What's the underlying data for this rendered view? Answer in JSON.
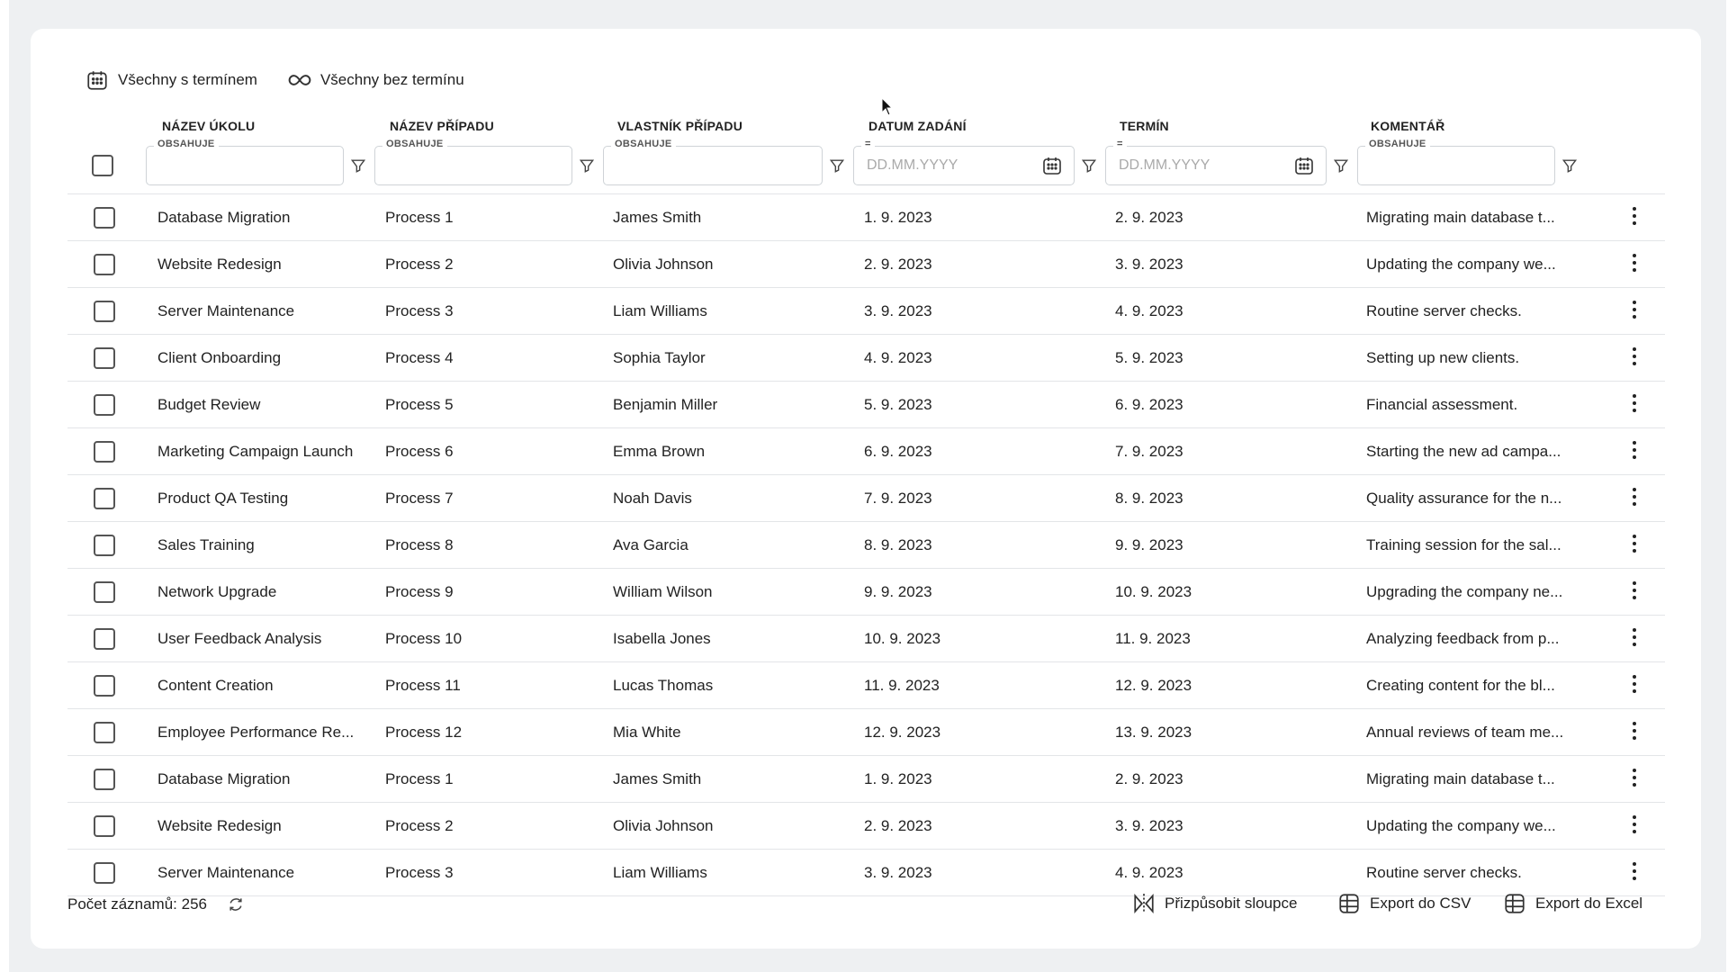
{
  "toolbar": {
    "with_deadline": "Všechny s termínem",
    "without_deadline": "Všechny bez termínu"
  },
  "columns": [
    {
      "label": "NÁZEV ÚKOLU",
      "filter_label": "OBSAHUJE",
      "placeholder": ""
    },
    {
      "label": "NÁZEV PŘÍPADU",
      "filter_label": "OBSAHUJE",
      "placeholder": ""
    },
    {
      "label": "VLASTNÍK PŘÍPADU",
      "filter_label": "OBSAHUJE",
      "placeholder": ""
    },
    {
      "label": "DATUM ZADÁNÍ",
      "filter_label": "=",
      "placeholder": "DD.MM.YYYY"
    },
    {
      "label": "TERMÍN",
      "filter_label": "=",
      "placeholder": "DD.MM.YYYY"
    },
    {
      "label": "KOMENTÁŘ",
      "filter_label": "OBSAHUJE",
      "placeholder": ""
    }
  ],
  "rows": [
    {
      "task": "Database Migration",
      "case": "Process 1",
      "owner": "James Smith",
      "assigned": "1. 9. 2023",
      "deadline": "2. 9. 2023",
      "comment": "Migrating main database t..."
    },
    {
      "task": "Website Redesign",
      "case": "Process 2",
      "owner": "Olivia Johnson",
      "assigned": "2. 9. 2023",
      "deadline": "3. 9. 2023",
      "comment": "Updating the company we..."
    },
    {
      "task": "Server Maintenance",
      "case": "Process 3",
      "owner": "Liam Williams",
      "assigned": "3. 9. 2023",
      "deadline": "4. 9. 2023",
      "comment": "Routine server checks."
    },
    {
      "task": "Client Onboarding",
      "case": "Process 4",
      "owner": "Sophia Taylor",
      "assigned": "4. 9. 2023",
      "deadline": "5. 9. 2023",
      "comment": "Setting up new clients."
    },
    {
      "task": "Budget Review",
      "case": "Process 5",
      "owner": "Benjamin Miller",
      "assigned": "5. 9. 2023",
      "deadline": "6. 9. 2023",
      "comment": "Financial assessment."
    },
    {
      "task": "Marketing Campaign Launch",
      "case": "Process 6",
      "owner": "Emma Brown",
      "assigned": "6. 9. 2023",
      "deadline": "7. 9. 2023",
      "comment": "Starting the new ad campa..."
    },
    {
      "task": "Product QA Testing",
      "case": "Process 7",
      "owner": "Noah Davis",
      "assigned": "7. 9. 2023",
      "deadline": "8. 9. 2023",
      "comment": "Quality assurance for the n..."
    },
    {
      "task": "Sales Training",
      "case": "Process 8",
      "owner": "Ava Garcia",
      "assigned": "8. 9. 2023",
      "deadline": "9. 9. 2023",
      "comment": "Training session for the sal..."
    },
    {
      "task": "Network Upgrade",
      "case": "Process 9",
      "owner": "William Wilson",
      "assigned": "9. 9. 2023",
      "deadline": "10. 9. 2023",
      "comment": "Upgrading the company ne..."
    },
    {
      "task": "User Feedback Analysis",
      "case": "Process 10",
      "owner": "Isabella Jones",
      "assigned": "10. 9. 2023",
      "deadline": "11. 9. 2023",
      "comment": "Analyzing feedback from p..."
    },
    {
      "task": "Content Creation",
      "case": "Process 11",
      "owner": "Lucas Thomas",
      "assigned": "11. 9. 2023",
      "deadline": "12. 9. 2023",
      "comment": "Creating content for the bl..."
    },
    {
      "task": "Employee Performance Re...",
      "case": "Process 12",
      "owner": "Mia White",
      "assigned": "12. 9. 2023",
      "deadline": "13. 9. 2023",
      "comment": "Annual reviews of team me..."
    },
    {
      "task": "Database Migration",
      "case": "Process 1",
      "owner": "James Smith",
      "assigned": "1. 9. 2023",
      "deadline": "2. 9. 2023",
      "comment": "Migrating main database t..."
    },
    {
      "task": "Website Redesign",
      "case": "Process 2",
      "owner": "Olivia Johnson",
      "assigned": "2. 9. 2023",
      "deadline": "3. 9. 2023",
      "comment": "Updating the company we..."
    },
    {
      "task": "Server Maintenance",
      "case": "Process 3",
      "owner": "Liam Williams",
      "assigned": "3. 9. 2023",
      "deadline": "4. 9. 2023",
      "comment": "Routine server checks."
    }
  ],
  "footer": {
    "record_count": "Počet záznamů: 256",
    "customize_columns": "Přizpůsobit sloupce",
    "export_csv": "Export do CSV",
    "export_excel": "Export do Excel"
  },
  "icons": {
    "with_deadline": "calendar-icon",
    "without_deadline": "infinity-icon",
    "filter": "funnel-icon",
    "date_picker": "calendar-icon",
    "row_menu": "kebab-menu-icon",
    "refresh": "refresh-icon",
    "customize": "columns-icon",
    "export": "table-grid-icon"
  }
}
